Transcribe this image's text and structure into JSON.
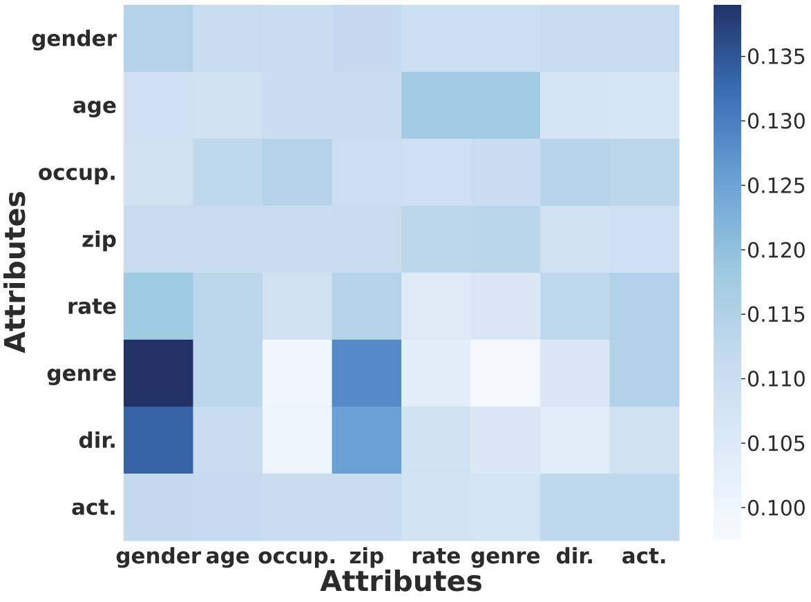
{
  "chart_data": {
    "type": "heatmap",
    "title": "",
    "xlabel": "Attributes",
    "ylabel": "Attributes",
    "x_categories": [
      "gender",
      "age",
      "occup.",
      "zip",
      "rate",
      "genre",
      "dir.",
      "act."
    ],
    "y_categories": [
      "gender",
      "age",
      "occup.",
      "zip",
      "rate",
      "genre",
      "dir.",
      "act."
    ],
    "values": [
      [
        0.1145,
        0.111,
        0.11,
        0.112,
        0.1095,
        0.1095,
        0.111,
        0.111
      ],
      [
        0.109,
        0.1085,
        0.11,
        0.11,
        0.1175,
        0.1175,
        0.107,
        0.1065
      ],
      [
        0.1085,
        0.1125,
        0.1145,
        0.1095,
        0.109,
        0.11,
        0.114,
        0.113
      ],
      [
        0.111,
        0.11,
        0.11,
        0.1105,
        0.113,
        0.1135,
        0.1085,
        0.109
      ],
      [
        0.118,
        0.113,
        0.1085,
        0.1145,
        0.1045,
        0.1055,
        0.1125,
        0.115
      ],
      [
        0.139,
        0.113,
        0.0995,
        0.1285,
        0.103,
        0.0985,
        0.1055,
        0.115
      ],
      [
        0.1335,
        0.1105,
        0.1005,
        0.1255,
        0.1085,
        0.1055,
        0.104,
        0.1085
      ],
      [
        0.112,
        0.1115,
        0.111,
        0.1105,
        0.108,
        0.1075,
        0.1125,
        0.1125
      ]
    ],
    "colorbar": {
      "min": 0.0975,
      "max": 0.139,
      "ticks": [
        0.1,
        0.105,
        0.11,
        0.115,
        0.12,
        0.125,
        0.13,
        0.135
      ],
      "tick_labels": [
        "0.100",
        "0.105",
        "0.110",
        "0.115",
        "0.120",
        "0.125",
        "0.130",
        "0.135"
      ]
    },
    "colormap": [
      "#f7fbff",
      "#deebf7",
      "#c6dbef",
      "#9ecae1",
      "#6ba3d6",
      "#3a6fb7",
      "#213366"
    ],
    "legend": "colorbar-right",
    "grid": false
  }
}
